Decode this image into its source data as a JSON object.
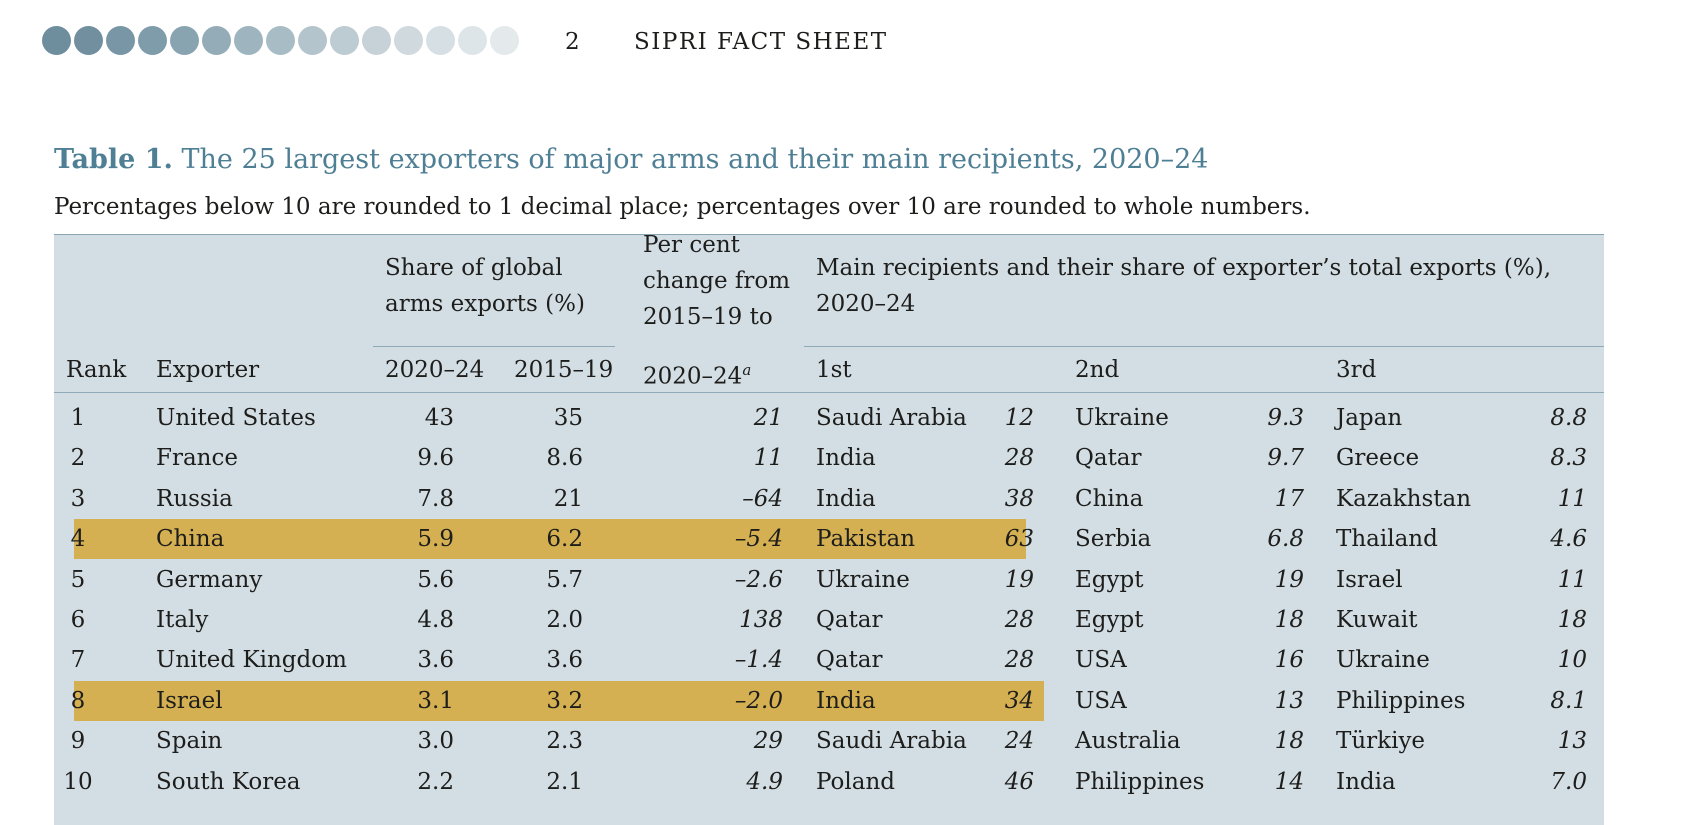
{
  "header": {
    "page_number": "2",
    "running_title": "SIPRI FACT SHEET",
    "dot_colors": [
      "#6e8e9e",
      "#728f9f",
      "#7896a5",
      "#7f9cab",
      "#89a4b1",
      "#93acb8",
      "#9eb4bf",
      "#a8bcc6",
      "#b3c4cc",
      "#bdcbd2",
      "#c6d2d8",
      "#cfd9de",
      "#d6dfe3",
      "#dde5e8",
      "#e4e9ec"
    ]
  },
  "table": {
    "title_bold": "Table 1.",
    "title_rest": " The 25 largest exporters of major arms and their main recipients, 2020–24",
    "subtitle": "Percentages below 10 are rounded to 1 decimal place; percentages over 10 are rounded to whole numbers.",
    "headers": {
      "rank": "Rank",
      "exporter": "Exporter",
      "share_group_line1": "Share of global",
      "share_group_line2": "arms exports (%)",
      "share_2020_24": "2020–24",
      "share_2015_19": "2015–19",
      "change_line1": "Per cent",
      "change_line2": "change from",
      "change_line3": "2015–19 to",
      "change_line4": "2020–24",
      "change_footnote": "a",
      "recipients_line1": "Main recipients and their share of exporter’s total exports (%),",
      "recipients_line2": "2020–24",
      "first": "1st",
      "second": "2nd",
      "third": "3rd"
    },
    "highlight_color": "#d5b052",
    "rows": [
      {
        "rank": "1",
        "exporter": "United States",
        "s2024": "43",
        "s2019": "35",
        "change": "21",
        "r1": "Saudi Arabia",
        "p1": "12",
        "r2": "Ukraine",
        "p2": "9.3",
        "r3": "Japan",
        "p3": "8.8",
        "highlighted": false
      },
      {
        "rank": "2",
        "exporter": "France",
        "s2024": "9.6",
        "s2019": "8.6",
        "change": "11",
        "r1": "India",
        "p1": "28",
        "r2": "Qatar",
        "p2": "9.7",
        "r3": "Greece",
        "p3": "8.3",
        "highlighted": false
      },
      {
        "rank": "3",
        "exporter": "Russia",
        "s2024": "7.8",
        "s2019": "21",
        "change": "–64",
        "r1": "India",
        "p1": "38",
        "r2": "China",
        "p2": "17",
        "r3": "Kazakhstan",
        "p3": "11",
        "highlighted": false
      },
      {
        "rank": "4",
        "exporter": "China",
        "s2024": "5.9",
        "s2019": "6.2",
        "change": "–5.4",
        "r1": "Pakistan",
        "p1": "63",
        "r2": "Serbia",
        "p2": "6.8",
        "r3": "Thailand",
        "p3": "4.6",
        "highlighted": true
      },
      {
        "rank": "5",
        "exporter": "Germany",
        "s2024": "5.6",
        "s2019": "5.7",
        "change": "–2.6",
        "r1": "Ukraine",
        "p1": "19",
        "r2": "Egypt",
        "p2": "19",
        "r3": "Israel",
        "p3": "11",
        "highlighted": false
      },
      {
        "rank": "6",
        "exporter": "Italy",
        "s2024": "4.8",
        "s2019": "2.0",
        "change": "138",
        "r1": "Qatar",
        "p1": "28",
        "r2": "Egypt",
        "p2": "18",
        "r3": "Kuwait",
        "p3": "18",
        "highlighted": false
      },
      {
        "rank": "7",
        "exporter": "United Kingdom",
        "s2024": "3.6",
        "s2019": "3.6",
        "change": "–1.4",
        "r1": "Qatar",
        "p1": "28",
        "r2": "USA",
        "p2": "16",
        "r3": "Ukraine",
        "p3": "10",
        "highlighted": false
      },
      {
        "rank": "8",
        "exporter": "Israel",
        "s2024": "3.1",
        "s2019": "3.2",
        "change": "–2.0",
        "r1": "India",
        "p1": "34",
        "r2": "USA",
        "p2": "13",
        "r3": "Philippines",
        "p3": "8.1",
        "highlighted": true
      },
      {
        "rank": "9",
        "exporter": "Spain",
        "s2024": "3.0",
        "s2019": "2.3",
        "change": "29",
        "r1": "Saudi Arabia",
        "p1": "24",
        "r2": "Australia",
        "p2": "18",
        "r3": "Türkiye",
        "p3": "13",
        "highlighted": false
      },
      {
        "rank": "10",
        "exporter": "South Korea",
        "s2024": "2.2",
        "s2019": "2.1",
        "change": "4.9",
        "r1": "Poland",
        "p1": "46",
        "r2": "Philippines",
        "p2": "14",
        "r3": "India",
        "p3": "7.0",
        "highlighted": false
      }
    ]
  }
}
